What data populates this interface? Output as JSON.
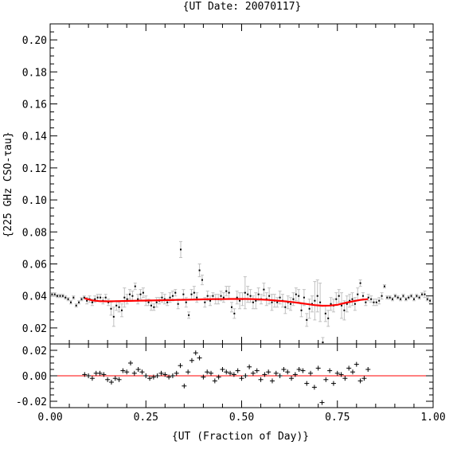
{
  "chart_data": [
    {
      "type": "scatter",
      "title": "{UT Date: 20070117}",
      "ylabel": "{225 GHz CSO-τau}",
      "xlim": [
        0.0,
        1.0
      ],
      "ylim": [
        0.01,
        0.21
      ],
      "yticks": [
        "0.02",
        "0.04",
        "0.06",
        "0.08",
        "0.10",
        "0.12",
        "0.14",
        "0.16",
        "0.18",
        "0.20"
      ],
      "grid": false,
      "series": [
        {
          "kind": "points-with-errorbars",
          "color": "#000000",
          "errorbar_color": "#c0c0c0",
          "x": [
            0.005,
            0.012,
            0.019,
            0.026,
            0.033,
            0.04,
            0.047,
            0.054,
            0.061,
            0.068,
            0.075,
            0.082,
            0.089,
            0.096,
            0.103,
            0.11,
            0.117,
            0.124,
            0.131,
            0.138,
            0.145,
            0.152,
            0.159,
            0.166,
            0.173,
            0.18,
            0.187,
            0.194,
            0.201,
            0.208,
            0.215,
            0.222,
            0.229,
            0.236,
            0.243,
            0.25,
            0.257,
            0.264,
            0.271,
            0.278,
            0.285,
            0.292,
            0.299,
            0.306,
            0.313,
            0.32,
            0.327,
            0.334,
            0.341,
            0.348,
            0.355,
            0.362,
            0.369,
            0.376,
            0.383,
            0.39,
            0.397,
            0.404,
            0.411,
            0.418,
            0.425,
            0.432,
            0.439,
            0.446,
            0.453,
            0.46,
            0.467,
            0.474,
            0.481,
            0.488,
            0.495,
            0.502,
            0.509,
            0.516,
            0.523,
            0.53,
            0.537,
            0.544,
            0.551,
            0.558,
            0.565,
            0.572,
            0.579,
            0.586,
            0.593,
            0.6,
            0.607,
            0.614,
            0.621,
            0.628,
            0.635,
            0.642,
            0.649,
            0.656,
            0.663,
            0.67,
            0.677,
            0.684,
            0.691,
            0.698,
            0.705,
            0.712,
            0.719,
            0.726,
            0.733,
            0.74,
            0.747,
            0.754,
            0.761,
            0.768,
            0.775,
            0.782,
            0.789,
            0.796,
            0.803,
            0.81,
            0.817,
            0.824,
            0.831,
            0.838,
            0.845,
            0.852,
            0.859,
            0.866,
            0.873,
            0.88,
            0.887,
            0.894,
            0.901,
            0.908,
            0.915,
            0.922,
            0.929,
            0.936,
            0.943,
            0.95,
            0.957,
            0.964,
            0.971,
            0.978,
            0.985,
            0.992
          ],
          "y": [
            0.041,
            0.041,
            0.04,
            0.04,
            0.04,
            0.039,
            0.038,
            0.036,
            0.039,
            0.034,
            0.036,
            0.038,
            0.039,
            0.037,
            0.038,
            0.036,
            0.038,
            0.039,
            0.039,
            0.037,
            0.039,
            0.036,
            0.032,
            0.027,
            0.034,
            0.033,
            0.031,
            0.039,
            0.038,
            0.041,
            0.04,
            0.046,
            0.038,
            0.041,
            0.042,
            0.037,
            0.036,
            0.034,
            0.033,
            0.036,
            0.037,
            0.039,
            0.038,
            0.036,
            0.039,
            0.04,
            0.042,
            0.035,
            0.069,
            0.041,
            0.036,
            0.028,
            0.041,
            0.042,
            0.039,
            0.056,
            0.05,
            0.036,
            0.04,
            0.037,
            0.04,
            0.038,
            0.038,
            0.04,
            0.039,
            0.043,
            0.042,
            0.033,
            0.029,
            0.039,
            0.037,
            0.038,
            0.042,
            0.041,
            0.04,
            0.036,
            0.037,
            0.041,
            0.038,
            0.044,
            0.038,
            0.04,
            0.036,
            0.037,
            0.036,
            0.039,
            0.037,
            0.033,
            0.036,
            0.035,
            0.038,
            0.041,
            0.04,
            0.031,
            0.039,
            0.025,
            0.032,
            0.035,
            0.037,
            0.04,
            0.036,
            0.011,
            0.029,
            0.026,
            0.035,
            0.034,
            0.038,
            0.04,
            0.034,
            0.031,
            0.035,
            0.037,
            0.038,
            0.035,
            0.041,
            0.048,
            0.04,
            0.036,
            0.039,
            0.038,
            0.036,
            0.036,
            0.037,
            0.04,
            0.046,
            0.039,
            0.039,
            0.038,
            0.04,
            0.039,
            0.038,
            0.04,
            0.038,
            0.039,
            0.04,
            0.038,
            0.04,
            0.039,
            0.041,
            0.041,
            0.038,
            0.037
          ],
          "err": [
            0.001,
            0.001,
            0.001,
            0.001,
            0.001,
            0.001,
            0.001,
            0.001,
            0.001,
            0.001,
            0.001,
            0.001,
            0.001,
            0.002,
            0.002,
            0.002,
            0.002,
            0.002,
            0.002,
            0.002,
            0.002,
            0.002,
            0.004,
            0.006,
            0.003,
            0.003,
            0.004,
            0.006,
            0.003,
            0.003,
            0.003,
            0.002,
            0.003,
            0.003,
            0.003,
            0.003,
            0.002,
            0.003,
            0.002,
            0.003,
            0.002,
            0.003,
            0.003,
            0.002,
            0.003,
            0.003,
            0.002,
            0.003,
            0.005,
            0.003,
            0.003,
            0.002,
            0.003,
            0.004,
            0.003,
            0.004,
            0.003,
            0.003,
            0.003,
            0.003,
            0.002,
            0.003,
            0.003,
            0.003,
            0.003,
            0.003,
            0.004,
            0.003,
            0.003,
            0.004,
            0.005,
            0.004,
            0.01,
            0.005,
            0.004,
            0.004,
            0.005,
            0.004,
            0.003,
            0.004,
            0.004,
            0.005,
            0.005,
            0.004,
            0.003,
            0.004,
            0.004,
            0.004,
            0.004,
            0.004,
            0.004,
            0.004,
            0.004,
            0.004,
            0.005,
            0.004,
            0.006,
            0.005,
            0.012,
            0.01,
            0.012,
            0.003,
            0.005,
            0.005,
            0.004,
            0.004,
            0.004,
            0.004,
            0.008,
            0.006,
            0.005,
            0.004,
            0.004,
            0.004,
            0.004,
            0.002,
            0.002,
            0.002,
            0.002,
            0.002,
            0.002,
            0.002,
            0.002,
            0.002,
            0.001,
            0.001,
            0.001,
            0.001,
            0.001,
            0.001,
            0.001,
            0.001,
            0.001,
            0.001,
            0.001,
            0.001,
            0.001,
            0.001,
            0.001,
            0.002,
            0.001,
            0.001
          ]
        },
        {
          "kind": "fit-line",
          "color": "#ff0000",
          "x": [
            0.09,
            0.11,
            0.13,
            0.15,
            0.17,
            0.19,
            0.21,
            0.23,
            0.25,
            0.27,
            0.29,
            0.31,
            0.33,
            0.35,
            0.37,
            0.39,
            0.41,
            0.43,
            0.45,
            0.47,
            0.49,
            0.51,
            0.53,
            0.55,
            0.57,
            0.59,
            0.61,
            0.63,
            0.65,
            0.67,
            0.69,
            0.71,
            0.73,
            0.75,
            0.77,
            0.79,
            0.81,
            0.83
          ],
          "y": [
            0.0385,
            0.0372,
            0.0367,
            0.0366,
            0.0367,
            0.0368,
            0.0369,
            0.037,
            0.0371,
            0.0372,
            0.0373,
            0.0374,
            0.0375,
            0.0376,
            0.0377,
            0.0378,
            0.0379,
            0.038,
            0.038,
            0.0381,
            0.0381,
            0.0381,
            0.038,
            0.0378,
            0.0375,
            0.0371,
            0.0367,
            0.0362,
            0.0356,
            0.035,
            0.0343,
            0.0339,
            0.034,
            0.0345,
            0.0356,
            0.0366,
            0.0375,
            0.038
          ]
        }
      ]
    },
    {
      "type": "scatter",
      "xlabel": "{UT (Fraction of Day)}",
      "xlim": [
        0.0,
        1.0
      ],
      "ylim": [
        -0.025,
        0.025
      ],
      "xticks": [
        "0.00",
        "0.25",
        "0.50",
        "0.75",
        "1.00"
      ],
      "yticks": [
        "-0.02",
        "0.00",
        "0.02"
      ],
      "grid": false,
      "zero_line_color": "#ff0000",
      "series": [
        {
          "kind": "residuals",
          "marker": "plus",
          "color": "#000000",
          "x": [
            0.09,
            0.1,
            0.11,
            0.12,
            0.13,
            0.14,
            0.15,
            0.16,
            0.17,
            0.18,
            0.19,
            0.2,
            0.21,
            0.22,
            0.23,
            0.24,
            0.25,
            0.26,
            0.27,
            0.28,
            0.29,
            0.3,
            0.31,
            0.32,
            0.33,
            0.34,
            0.35,
            0.36,
            0.37,
            0.38,
            0.39,
            0.4,
            0.41,
            0.42,
            0.43,
            0.44,
            0.45,
            0.46,
            0.47,
            0.48,
            0.49,
            0.5,
            0.51,
            0.52,
            0.53,
            0.54,
            0.55,
            0.56,
            0.57,
            0.58,
            0.59,
            0.6,
            0.61,
            0.62,
            0.63,
            0.64,
            0.65,
            0.66,
            0.67,
            0.68,
            0.69,
            0.7,
            0.71,
            0.72,
            0.73,
            0.74,
            0.75,
            0.76,
            0.77,
            0.78,
            0.79,
            0.8,
            0.81,
            0.82,
            0.83
          ],
          "y": [
            0.001,
            0.0,
            -0.002,
            0.002,
            0.002,
            0.001,
            -0.003,
            -0.005,
            -0.002,
            -0.003,
            0.004,
            0.003,
            0.01,
            0.002,
            0.005,
            0.003,
            0.0,
            -0.002,
            -0.001,
            0.0,
            0.002,
            0.001,
            -0.001,
            0.0,
            0.002,
            0.008,
            -0.008,
            0.003,
            0.012,
            0.018,
            0.014,
            -0.001,
            0.003,
            0.002,
            -0.004,
            -0.001,
            0.005,
            0.003,
            0.002,
            0.001,
            0.004,
            -0.002,
            0.0,
            0.007,
            0.002,
            0.004,
            -0.003,
            0.001,
            0.003,
            -0.004,
            0.002,
            0.0,
            0.005,
            0.003,
            -0.002,
            0.001,
            0.005,
            0.004,
            -0.006,
            0.002,
            -0.009,
            0.006,
            -0.021,
            -0.003,
            0.004,
            -0.006,
            0.002,
            0.001,
            -0.002,
            0.006,
            0.003,
            0.009,
            -0.004,
            -0.002,
            0.005
          ]
        }
      ]
    }
  ]
}
